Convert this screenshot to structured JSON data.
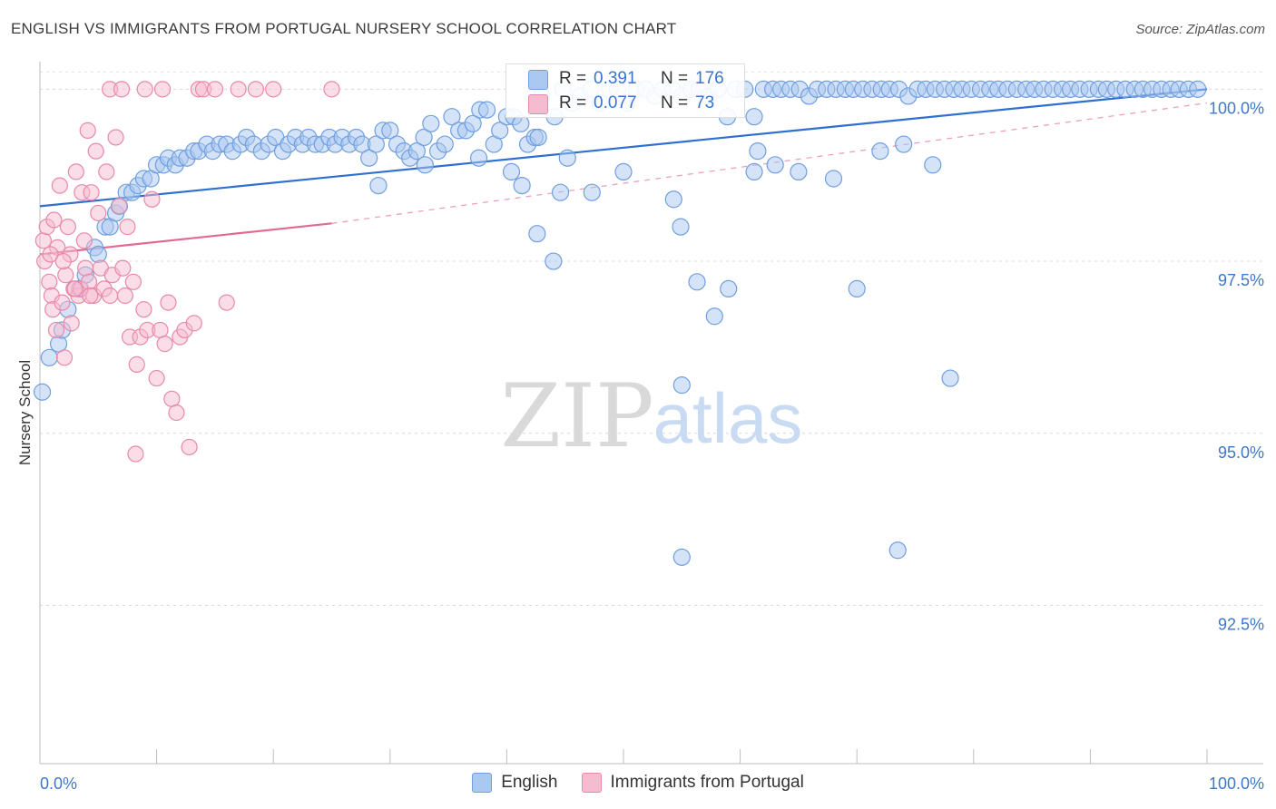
{
  "title": "ENGLISH VS IMMIGRANTS FROM PORTUGAL NURSERY SCHOOL CORRELATION CHART",
  "source": "Source: ZipAtlas.com",
  "watermark": {
    "zip": "ZIP",
    "atlas": "atlas"
  },
  "legend_box": {
    "r_label": "R =",
    "n_label": "N =",
    "rows": [
      {
        "r": "0.391",
        "n": "176"
      },
      {
        "r": "0.077",
        "n": "73"
      }
    ]
  },
  "chart_data": {
    "type": "scatter",
    "title": "ENGLISH VS IMMIGRANTS FROM PORTUGAL NURSERY SCHOOL CORRELATION CHART",
    "xlabel": "",
    "ylabel": "Nursery School",
    "xlim": [
      0,
      100
    ],
    "ylim": [
      90.2,
      100.4
    ],
    "x_tick_labels": [
      "0.0%",
      "100.0%"
    ],
    "y_ticks": [
      100.0,
      97.5,
      95.0,
      92.5
    ],
    "y_tick_labels": [
      "100.0%",
      "97.5%",
      "95.0%",
      "92.5%"
    ],
    "grid": true,
    "legend": "bottom-center",
    "series": [
      {
        "name": "English",
        "color": "#6f9fe0",
        "fill": "#aac8f0",
        "r": 0.391,
        "n": 176,
        "trend": {
          "x": [
            0,
            100
          ],
          "y": [
            98.3,
            100.0
          ],
          "style": "solid"
        },
        "points": [
          [
            0.2,
            95.6
          ],
          [
            0.8,
            96.1
          ],
          [
            1.6,
            96.3
          ],
          [
            1.9,
            96.5
          ],
          [
            2.4,
            96.8
          ],
          [
            3.4,
            97.1
          ],
          [
            3.9,
            97.3
          ],
          [
            4.7,
            97.7
          ],
          [
            5.0,
            97.6
          ],
          [
            5.6,
            98.0
          ],
          [
            6.0,
            98.0
          ],
          [
            6.5,
            98.2
          ],
          [
            6.8,
            98.3
          ],
          [
            7.4,
            98.5
          ],
          [
            7.9,
            98.5
          ],
          [
            8.4,
            98.6
          ],
          [
            8.9,
            98.7
          ],
          [
            9.5,
            98.7
          ],
          [
            10.0,
            98.9
          ],
          [
            10.6,
            98.9
          ],
          [
            11.0,
            99.0
          ],
          [
            11.6,
            98.9
          ],
          [
            12.0,
            99.0
          ],
          [
            12.6,
            99.0
          ],
          [
            13.2,
            99.1
          ],
          [
            13.6,
            99.1
          ],
          [
            14.3,
            99.2
          ],
          [
            14.8,
            99.1
          ],
          [
            15.4,
            99.2
          ],
          [
            16.0,
            99.2
          ],
          [
            16.5,
            99.1
          ],
          [
            17.2,
            99.2
          ],
          [
            17.7,
            99.3
          ],
          [
            18.3,
            99.2
          ],
          [
            19.0,
            99.1
          ],
          [
            19.6,
            99.2
          ],
          [
            20.2,
            99.3
          ],
          [
            20.8,
            99.1
          ],
          [
            21.3,
            99.2
          ],
          [
            21.9,
            99.3
          ],
          [
            22.5,
            99.2
          ],
          [
            23.0,
            99.3
          ],
          [
            23.6,
            99.2
          ],
          [
            24.2,
            99.2
          ],
          [
            24.8,
            99.3
          ],
          [
            25.3,
            99.2
          ],
          [
            25.9,
            99.3
          ],
          [
            26.5,
            99.2
          ],
          [
            27.1,
            99.3
          ],
          [
            27.6,
            99.2
          ],
          [
            28.2,
            99.0
          ],
          [
            28.8,
            99.2
          ],
          [
            29.4,
            99.4
          ],
          [
            30.0,
            99.4
          ],
          [
            30.6,
            99.2
          ],
          [
            31.2,
            99.1
          ],
          [
            31.7,
            99.0
          ],
          [
            32.3,
            99.1
          ],
          [
            32.9,
            99.3
          ],
          [
            33.5,
            99.5
          ],
          [
            34.1,
            99.1
          ],
          [
            34.7,
            99.2
          ],
          [
            35.3,
            99.6
          ],
          [
            35.9,
            99.4
          ],
          [
            36.5,
            99.4
          ],
          [
            37.1,
            99.5
          ],
          [
            37.7,
            99.7
          ],
          [
            38.3,
            99.7
          ],
          [
            38.9,
            99.2
          ],
          [
            39.4,
            99.4
          ],
          [
            40.0,
            99.6
          ],
          [
            40.6,
            99.6
          ],
          [
            41.2,
            99.5
          ],
          [
            41.8,
            99.2
          ],
          [
            42.4,
            99.3
          ],
          [
            43.0,
            99.9
          ],
          [
            44.1,
            99.6
          ],
          [
            44.8,
            100.0
          ],
          [
            45.6,
            99.8
          ],
          [
            46.3,
            99.9
          ],
          [
            47.2,
            100.0
          ],
          [
            48.0,
            99.8
          ],
          [
            48.8,
            100.0
          ],
          [
            49.5,
            100.0
          ],
          [
            50.3,
            99.8
          ],
          [
            51.1,
            100.0
          ],
          [
            51.9,
            100.0
          ],
          [
            52.7,
            99.9
          ],
          [
            53.4,
            100.0
          ],
          [
            54.2,
            100.0
          ],
          [
            55.0,
            99.9
          ],
          [
            55.8,
            100.0
          ],
          [
            56.5,
            100.0
          ],
          [
            57.3,
            99.9
          ],
          [
            58.1,
            100.0
          ],
          [
            58.9,
            99.6
          ],
          [
            59.6,
            100.0
          ],
          [
            60.4,
            100.0
          ],
          [
            61.2,
            99.6
          ],
          [
            62.0,
            100.0
          ],
          [
            62.8,
            100.0
          ],
          [
            63.5,
            100.0
          ],
          [
            64.3,
            100.0
          ],
          [
            65.1,
            100.0
          ],
          [
            65.9,
            99.9
          ],
          [
            66.6,
            100.0
          ],
          [
            67.4,
            100.0
          ],
          [
            68.2,
            100.0
          ],
          [
            69.0,
            100.0
          ],
          [
            69.7,
            100.0
          ],
          [
            70.5,
            100.0
          ],
          [
            71.3,
            100.0
          ],
          [
            72.1,
            100.0
          ],
          [
            72.8,
            100.0
          ],
          [
            73.6,
            100.0
          ],
          [
            74.4,
            99.9
          ],
          [
            75.2,
            100.0
          ],
          [
            75.9,
            100.0
          ],
          [
            76.7,
            100.0
          ],
          [
            77.5,
            100.0
          ],
          [
            78.3,
            100.0
          ],
          [
            79.0,
            100.0
          ],
          [
            79.8,
            100.0
          ],
          [
            80.6,
            100.0
          ],
          [
            81.4,
            100.0
          ],
          [
            82.1,
            100.0
          ],
          [
            82.9,
            100.0
          ],
          [
            83.7,
            100.0
          ],
          [
            84.5,
            100.0
          ],
          [
            85.2,
            100.0
          ],
          [
            86.0,
            100.0
          ],
          [
            86.8,
            100.0
          ],
          [
            87.6,
            100.0
          ],
          [
            88.3,
            100.0
          ],
          [
            89.1,
            100.0
          ],
          [
            89.9,
            100.0
          ],
          [
            90.7,
            100.0
          ],
          [
            91.4,
            100.0
          ],
          [
            92.2,
            100.0
          ],
          [
            93.0,
            100.0
          ],
          [
            93.8,
            100.0
          ],
          [
            94.5,
            100.0
          ],
          [
            95.3,
            100.0
          ],
          [
            96.1,
            100.0
          ],
          [
            96.9,
            100.0
          ],
          [
            97.6,
            100.0
          ],
          [
            98.4,
            100.0
          ],
          [
            99.2,
            100.0
          ],
          [
            42.7,
            99.3
          ],
          [
            41.3,
            98.6
          ],
          [
            42.6,
            97.9
          ],
          [
            44.6,
            98.5
          ],
          [
            44.0,
            97.5
          ],
          [
            47.3,
            98.5
          ],
          [
            50.0,
            98.8
          ],
          [
            54.3,
            98.4
          ],
          [
            54.9,
            98.0
          ],
          [
            56.3,
            97.2
          ],
          [
            57.8,
            96.7
          ],
          [
            59.0,
            97.1
          ],
          [
            61.5,
            99.1
          ],
          [
            63.0,
            98.9
          ],
          [
            65.0,
            98.8
          ],
          [
            68.0,
            98.7
          ],
          [
            70.0,
            97.1
          ],
          [
            72.0,
            99.1
          ],
          [
            74.0,
            99.2
          ],
          [
            76.5,
            98.9
          ],
          [
            78.0,
            95.8
          ],
          [
            73.5,
            93.3
          ],
          [
            55.0,
            93.2
          ],
          [
            55.0,
            95.7
          ],
          [
            61.2,
            98.8
          ],
          [
            29.0,
            98.6
          ],
          [
            33.0,
            98.9
          ],
          [
            37.6,
            99.0
          ],
          [
            40.4,
            98.8
          ],
          [
            45.2,
            99.0
          ]
        ]
      },
      {
        "name": "Immigrants from Portugal",
        "color": "#e889a8",
        "fill": "#f5bcd0",
        "r": 0.077,
        "n": 73,
        "trend": {
          "x": [
            0,
            25
          ],
          "y": [
            97.6,
            98.05
          ],
          "style": "solid",
          "extend_to": [
            100,
            99.8
          ],
          "extend_style": "dashed"
        },
        "points": [
          [
            0.3,
            97.8
          ],
          [
            0.4,
            97.5
          ],
          [
            0.6,
            98.0
          ],
          [
            0.8,
            97.2
          ],
          [
            1.0,
            97.0
          ],
          [
            1.1,
            96.8
          ],
          [
            1.2,
            98.1
          ],
          [
            1.4,
            96.5
          ],
          [
            1.5,
            97.7
          ],
          [
            1.7,
            98.6
          ],
          [
            1.9,
            96.9
          ],
          [
            2.1,
            96.1
          ],
          [
            2.2,
            97.3
          ],
          [
            2.4,
            98.0
          ],
          [
            2.6,
            97.6
          ],
          [
            2.7,
            96.6
          ],
          [
            2.9,
            97.1
          ],
          [
            3.1,
            98.8
          ],
          [
            3.3,
            97.0
          ],
          [
            3.5,
            97.1
          ],
          [
            3.6,
            98.5
          ],
          [
            3.8,
            97.8
          ],
          [
            3.9,
            97.4
          ],
          [
            4.1,
            99.4
          ],
          [
            4.2,
            97.2
          ],
          [
            4.4,
            98.5
          ],
          [
            4.6,
            97.0
          ],
          [
            4.8,
            99.1
          ],
          [
            5.0,
            98.2
          ],
          [
            5.2,
            97.4
          ],
          [
            5.5,
            97.1
          ],
          [
            5.7,
            98.8
          ],
          [
            6.0,
            97.0
          ],
          [
            6.2,
            97.3
          ],
          [
            6.5,
            99.3
          ],
          [
            6.8,
            98.3
          ],
          [
            7.1,
            97.4
          ],
          [
            7.3,
            97.0
          ],
          [
            7.5,
            98.0
          ],
          [
            7.7,
            96.4
          ],
          [
            8.0,
            97.2
          ],
          [
            8.3,
            96.0
          ],
          [
            8.6,
            96.4
          ],
          [
            8.9,
            96.8
          ],
          [
            9.2,
            96.5
          ],
          [
            9.6,
            98.4
          ],
          [
            10.0,
            95.8
          ],
          [
            10.3,
            96.5
          ],
          [
            10.7,
            96.3
          ],
          [
            11.0,
            96.9
          ],
          [
            11.3,
            95.5
          ],
          [
            11.7,
            95.3
          ],
          [
            12.0,
            96.4
          ],
          [
            12.4,
            96.5
          ],
          [
            12.8,
            94.8
          ],
          [
            13.2,
            96.6
          ],
          [
            13.6,
            100.0
          ],
          [
            14.0,
            100.0
          ],
          [
            15.0,
            100.0
          ],
          [
            16.0,
            96.9
          ],
          [
            17.0,
            100.0
          ],
          [
            18.5,
            100.0
          ],
          [
            20.0,
            100.0
          ],
          [
            25.0,
            100.0
          ],
          [
            6.0,
            100.0
          ],
          [
            7.0,
            100.0
          ],
          [
            9.0,
            100.0
          ],
          [
            10.5,
            100.0
          ],
          [
            8.2,
            94.7
          ],
          [
            0.9,
            97.6
          ],
          [
            2.0,
            97.5
          ],
          [
            3.0,
            97.1
          ],
          [
            4.3,
            97.0
          ]
        ]
      }
    ]
  }
}
